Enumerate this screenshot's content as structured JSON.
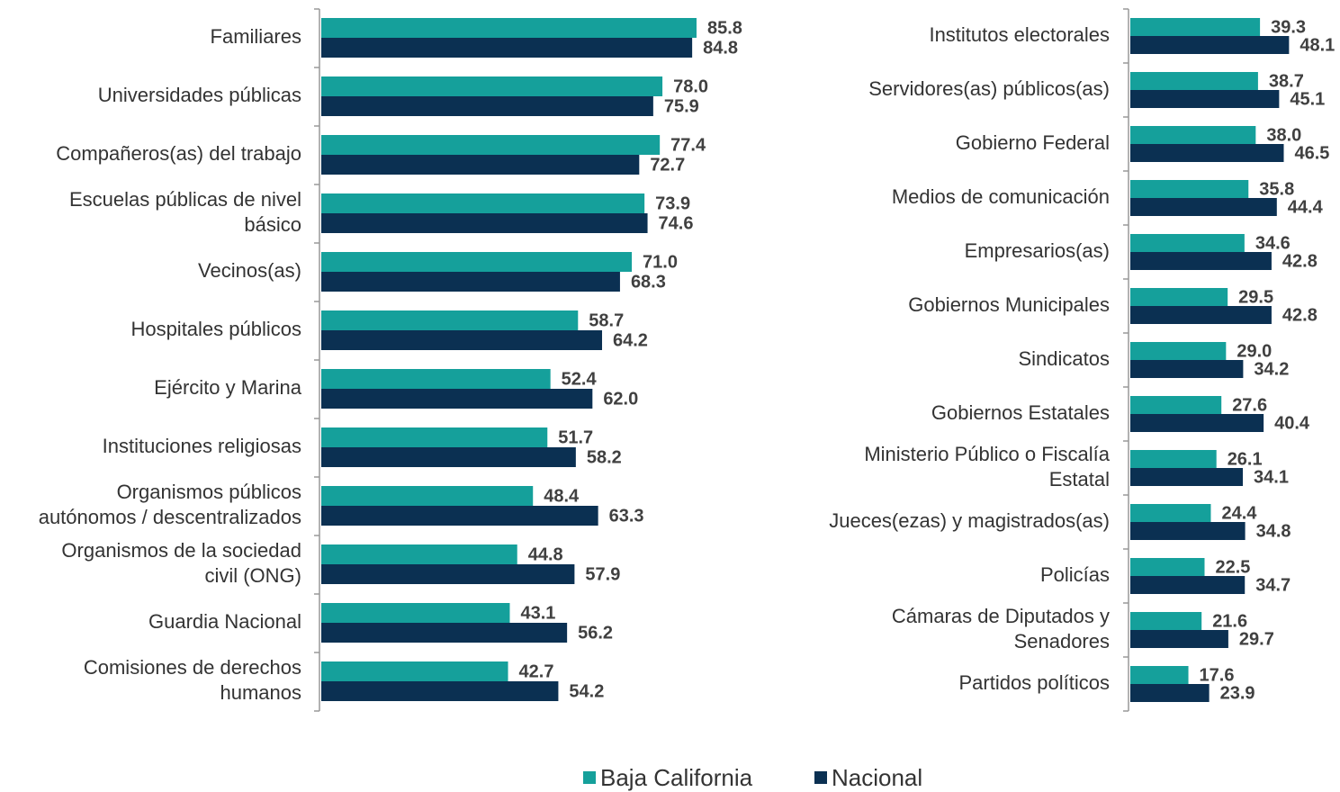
{
  "chart_data": [
    {
      "type": "hbar",
      "categories": [
        "Familiares",
        "Universidades públicas",
        "Compañeros(as) del trabajo",
        "Escuelas públicas de nivel\nbásico",
        "Vecinos(as)",
        "Hospitales públicos",
        "Ejército y Marina",
        "Instituciones religiosas",
        "Organismos públicos\nautónomos / descentralizados",
        "Organismos de la sociedad\ncivil (ONG)",
        "Guardia Nacional",
        "Comisiones de derechos\nhumanos"
      ],
      "xlim": [
        0,
        100
      ],
      "series": [
        {
          "name": "Baja California",
          "color": "#15a09b",
          "values": [
            85.8,
            78.0,
            77.4,
            73.9,
            71.0,
            58.7,
            52.4,
            51.7,
            48.4,
            44.8,
            43.1,
            42.7
          ],
          "value_labels": [
            "85.8",
            "78.0",
            "77.4",
            "73.9",
            "71.0",
            "58.7",
            "52.4",
            "51.7",
            "48.4",
            "44.8",
            "43.1",
            "42.7"
          ]
        },
        {
          "name": "Nacional",
          "color": "#0b3052",
          "values": [
            84.8,
            75.9,
            72.7,
            74.6,
            68.3,
            64.2,
            62.0,
            58.2,
            63.3,
            57.9,
            56.2,
            54.2
          ],
          "value_labels": [
            "84.8",
            "75.9",
            "72.7",
            "74.6",
            "68.3",
            "64.2",
            "62.0",
            "58.2",
            "63.3",
            "57.9",
            "56.2",
            "54.2"
          ]
        }
      ]
    },
    {
      "type": "hbar",
      "categories": [
        "Institutos electorales",
        "Servidores(as) públicos(as)",
        "Gobierno Federal",
        "Medios de comunicación",
        "Empresarios(as)",
        "Gobiernos Municipales",
        "Sindicatos",
        "Gobiernos Estatales",
        "Ministerio Público o Fiscalía\nEstatal",
        "Jueces(ezas) y magistrados(as)",
        "Policías",
        "Cámaras de Diputados y\nSenadores",
        "Partidos políticos"
      ],
      "xlim": [
        0,
        60
      ],
      "series": [
        {
          "color": "#15a09b",
          "values": [
            39.3,
            38.7,
            38.0,
            35.8,
            34.6,
            29.5,
            29.0,
            27.6,
            26.1,
            24.4,
            22.5,
            21.6,
            17.6
          ],
          "value_labels": [
            "39.3",
            "38.7",
            "38.0",
            "35.8",
            "34.6",
            "29.5",
            "29.0",
            "27.6",
            "26.1",
            "24.4",
            "22.5",
            "21.6",
            "17.6"
          ]
        },
        {
          "color": "#0b3052",
          "values": [
            48.1,
            45.1,
            46.5,
            44.4,
            42.8,
            42.8,
            34.2,
            40.4,
            34.1,
            34.8,
            34.7,
            29.7,
            23.9
          ],
          "value_labels": [
            "48.1",
            "45.1",
            "46.5",
            "44.4",
            "42.8",
            "42.8",
            "34.2",
            "40.4",
            "34.1",
            "34.8",
            "34.7",
            "29.7",
            "23.9"
          ]
        }
      ]
    }
  ]
}
